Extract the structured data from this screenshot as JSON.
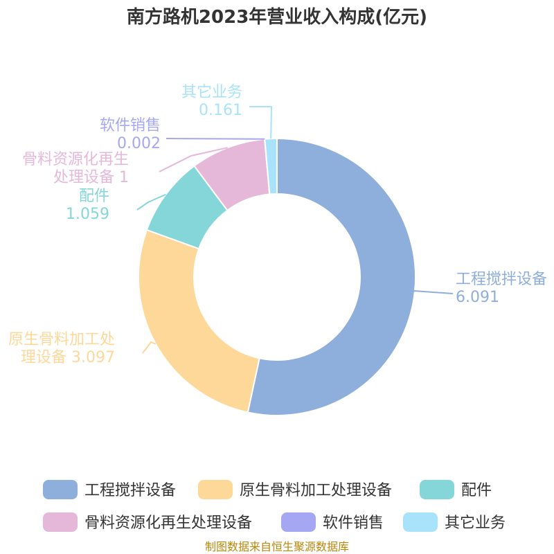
{
  "chart_data": {
    "type": "pie",
    "variant": "donut",
    "title": "南方路机2023年营业收入构成(亿元)",
    "unit": "亿元",
    "slices": [
      {
        "name": "工程搅拌设备",
        "value": 6.091,
        "value_label": "6.091",
        "color": "#8eaedb"
      },
      {
        "name": "原生骨料加工处理设备",
        "value": 3.097,
        "value_label": "3.097",
        "color": "#fdd899"
      },
      {
        "name": "配件",
        "value": 1.059,
        "value_label": "1.059",
        "color": "#84d6d8"
      },
      {
        "name": "骨料资源化再生处理设备",
        "value": 1,
        "value_label": "1",
        "color": "#e5b8d9"
      },
      {
        "name": "软件销售",
        "value": 0.002,
        "value_label": "0.002",
        "color": "#a5a7f2"
      },
      {
        "name": "其它业务",
        "value": 0.161,
        "value_label": "0.161",
        "color": "#a8e2fb"
      }
    ],
    "legend_position": "bottom",
    "source": "制图数据来自恒生聚源数据库"
  }
}
